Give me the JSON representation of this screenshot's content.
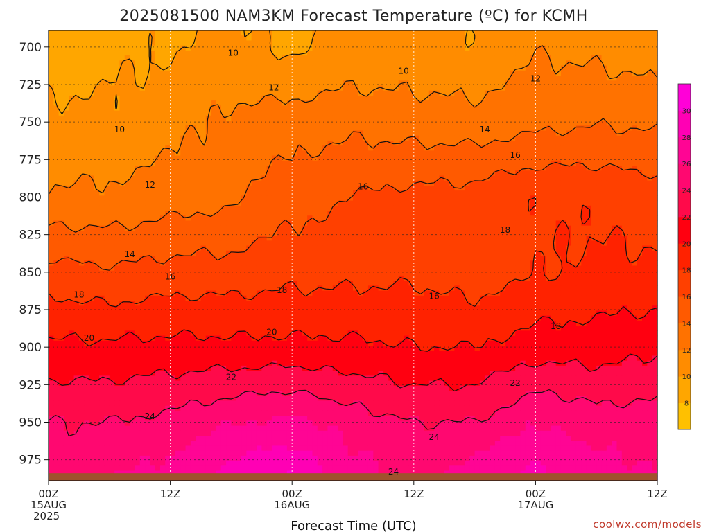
{
  "chart_data": {
    "type": "heatmap",
    "title": "2025081500 NAM3KM Forecast Temperature (ºC) for KCMH",
    "xlabel": "Forecast Time (UTC)",
    "ylabel": "",
    "credit": "coolwx.com/models",
    "x_ticks": [
      {
        "hour": 0,
        "l1": "00Z",
        "l2": "15AUG",
        "l3": "2025"
      },
      {
        "hour": 12,
        "l1": "12Z",
        "l2": "",
        "l3": ""
      },
      {
        "hour": 24,
        "l1": "00Z",
        "l2": "16AUG",
        "l3": ""
      },
      {
        "hour": 36,
        "l1": "12Z",
        "l2": "",
        "l3": ""
      },
      {
        "hour": 48,
        "l1": "00Z",
        "l2": "17AUG",
        "l3": ""
      },
      {
        "hour": 60,
        "l1": "12Z",
        "l2": "",
        "l3": ""
      }
    ],
    "xlim": [
      0,
      60
    ],
    "y_ticks": [
      700,
      725,
      750,
      775,
      800,
      825,
      850,
      875,
      900,
      925,
      950,
      975
    ],
    "ylim": [
      989,
      689
    ],
    "colorbar": {
      "levels": [
        6,
        8,
        10,
        12,
        14,
        16,
        18,
        20,
        22,
        24,
        26,
        28,
        30,
        32
      ],
      "labels": [
        "8",
        "10",
        "12",
        "14",
        "16",
        "18",
        "20",
        "22",
        "24",
        "26",
        "28",
        "30"
      ],
      "colors": [
        "#ffc000",
        "#ffa600",
        "#ff8c00",
        "#ff7200",
        "#ff5a00",
        "#ff4000",
        "#ff2200",
        "#ff0010",
        "#ff0a4a",
        "#ff0870",
        "#ff0594",
        "#ff00b4",
        "#ff00d8"
      ]
    },
    "ground_color": "#a0522d",
    "surface_pressure_hpa": 984,
    "pressure_levels_hpa": [
      700,
      750,
      800,
      850,
      900,
      950,
      985
    ],
    "hours": [
      0,
      6,
      12,
      18,
      24,
      30,
      36,
      42,
      48,
      54,
      60
    ],
    "temperature_c": [
      [
        9,
        9.5,
        9.8,
        10.5,
        9.6,
        10.4,
        10.5,
        10.2,
        11.8,
        11.4,
        10.8
      ],
      [
        10.5,
        10.4,
        11.2,
        12.5,
        13.0,
        13.4,
        13.0,
        12.8,
        13.4,
        13.8,
        13.6
      ],
      [
        12.3,
        12.4,
        13.0,
        13.5,
        15.2,
        16.1,
        16.6,
        16.8,
        17.8,
        17.6,
        17.0
      ],
      [
        16.8,
        16.3,
        16.8,
        16.9,
        17.3,
        17.4,
        17.6,
        16.9,
        17.8,
        18.4,
        18.4
      ],
      [
        20.4,
        20.4,
        20.6,
        20.5,
        20.5,
        20.4,
        20.0,
        20.0,
        21.0,
        21.0,
        21.6
      ],
      [
        24.0,
        24.0,
        24.6,
        25.8,
        26.5,
        25.0,
        24.0,
        24.0,
        26.0,
        25.0,
        25.0
      ],
      [
        24.8,
        25.8,
        26.8,
        29.0,
        30.0,
        27.0,
        25.5,
        27.0,
        28.5,
        27.0,
        26.0
      ]
    ],
    "contour_labels": [
      {
        "text": "10",
        "hour": 18.2,
        "p": 704
      },
      {
        "text": "10",
        "hour": 35.0,
        "p": 716
      },
      {
        "text": "10",
        "hour": 7.0,
        "p": 755
      },
      {
        "text": "12",
        "hour": 22.2,
        "p": 727
      },
      {
        "text": "12",
        "hour": 48.0,
        "p": 721
      },
      {
        "text": "12",
        "hour": 10.0,
        "p": 792
      },
      {
        "text": "14",
        "hour": 43.0,
        "p": 755
      },
      {
        "text": "14",
        "hour": 8.0,
        "p": 838
      },
      {
        "text": "16",
        "hour": 31.0,
        "p": 793
      },
      {
        "text": "16",
        "hour": 46.0,
        "p": 772
      },
      {
        "text": "16",
        "hour": 12.0,
        "p": 853
      },
      {
        "text": "16",
        "hour": 38.0,
        "p": 866
      },
      {
        "text": "18",
        "hour": 3.0,
        "p": 865
      },
      {
        "text": "18",
        "hour": 23.0,
        "p": 862
      },
      {
        "text": "18",
        "hour": 45.0,
        "p": 822
      },
      {
        "text": "18",
        "hour": 50.0,
        "p": 886
      },
      {
        "text": "20",
        "hour": 4.0,
        "p": 894
      },
      {
        "text": "20",
        "hour": 22.0,
        "p": 890
      },
      {
        "text": "22",
        "hour": 18.0,
        "p": 920
      },
      {
        "text": "22",
        "hour": 46.0,
        "p": 924
      },
      {
        "text": "24",
        "hour": 10.0,
        "p": 946
      },
      {
        "text": "24",
        "hour": 38.0,
        "p": 960
      },
      {
        "text": "24",
        "hour": 34.0,
        "p": 983
      }
    ]
  }
}
